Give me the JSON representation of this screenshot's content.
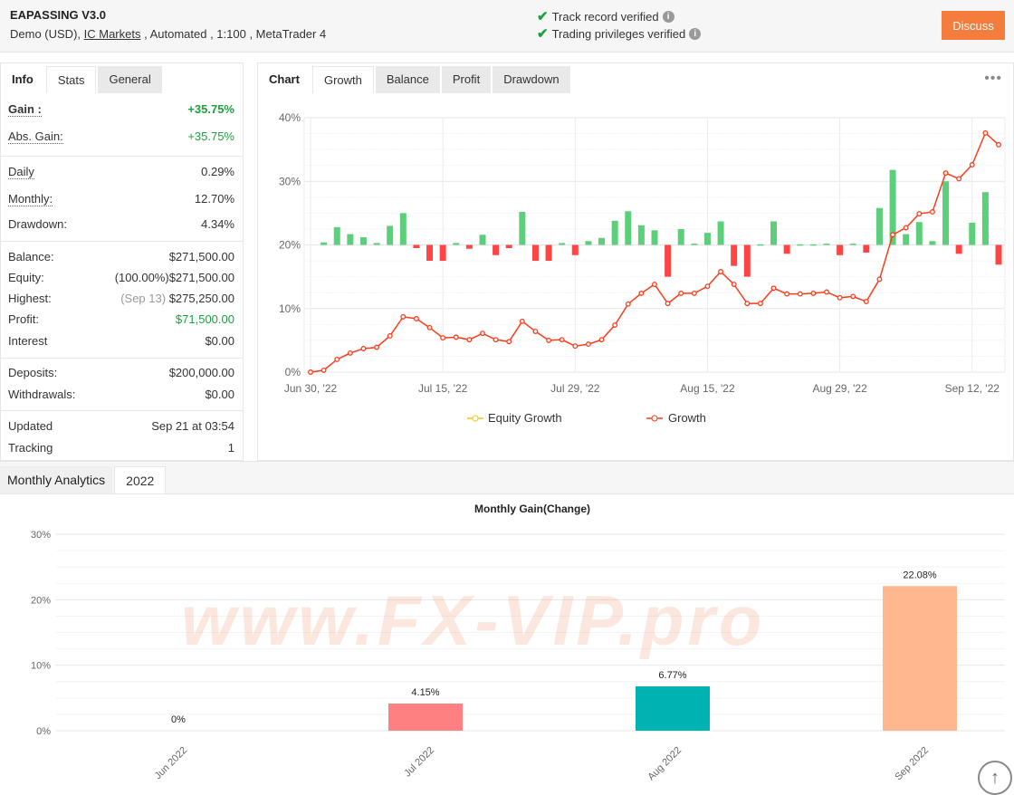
{
  "header": {
    "title": "EAPASSING V3.0",
    "sub_prefix": "Demo (USD), ",
    "broker": "IC Markets",
    "sub_suffix": " , Automated , 1:100 , MetaTrader 4",
    "verified": [
      "Track record verified",
      "Trading privileges verified"
    ],
    "discuss": "Discuss"
  },
  "left_tabs": [
    "Info",
    "Stats",
    "General"
  ],
  "stats": {
    "gain": {
      "k": "Gain :",
      "v": "+35.75%"
    },
    "abs_gain": {
      "k": "Abs. Gain:",
      "v": "+35.75%"
    },
    "daily": {
      "k": "Daily",
      "v": "0.29%"
    },
    "monthly": {
      "k": "Monthly:",
      "v": "12.70%"
    },
    "drawdown": {
      "k": "Drawdown:",
      "v": "4.34%"
    },
    "balance": {
      "k": "Balance:",
      "v": "$271,500.00"
    },
    "equity": {
      "k": "Equity:",
      "pre": "(100.00%)",
      "v": "$271,500.00"
    },
    "highest": {
      "k": "Highest:",
      "pre": "(Sep 13)",
      "v": "$275,250.00"
    },
    "profit": {
      "k": "Profit:",
      "v": "$71,500.00"
    },
    "interest": {
      "k": "Interest",
      "v": "$0.00"
    },
    "deposits": {
      "k": "Deposits:",
      "v": "$200,000.00"
    },
    "withdrawals": {
      "k": "Withdrawals:",
      "v": "$0.00"
    },
    "updated": {
      "k": "Updated",
      "v": "Sep 21 at 03:54"
    },
    "tracking": {
      "k": "Tracking",
      "v": "1"
    }
  },
  "chart_tabs": [
    "Chart",
    "Growth",
    "Balance",
    "Profit",
    "Drawdown"
  ],
  "watermark": "www.FX-VIP.pro",
  "chart_data": [
    {
      "type": "line",
      "y_ticks": [
        "0%",
        "10%",
        "20%",
        "30%",
        "40%"
      ],
      "ylim": [
        0,
        40
      ],
      "x_ticks": [
        {
          "index": 0,
          "label": "Jun 30, '22"
        },
        {
          "index": 10,
          "label": "Jul 15, '22"
        },
        {
          "index": 20,
          "label": "Jul 29, '22"
        },
        {
          "index": 30,
          "label": "Aug 15, '22"
        },
        {
          "index": 40,
          "label": "Aug 29, '22"
        },
        {
          "index": 50,
          "label": "Sep 12, '22"
        }
      ],
      "legend": [
        "Equity Growth",
        "Growth"
      ],
      "legend_position": "bottom",
      "colors": {
        "growth": "#ff3b1a",
        "equity": "#f2c81a",
        "bar_pos": "#5ccf7a",
        "bar_neg": "#ff4444"
      },
      "growth": [
        0,
        0.3,
        2.0,
        3.0,
        3.7,
        3.9,
        5.7,
        8.7,
        8.4,
        7.0,
        5.4,
        5.5,
        5.1,
        6.1,
        5.1,
        4.8,
        8.0,
        6.4,
        5.0,
        5.1,
        4.1,
        4.4,
        5.1,
        7.4,
        10.7,
        12.4,
        13.8,
        10.8,
        12.4,
        12.4,
        13.5,
        15.8,
        13.8,
        10.8,
        10.8,
        13.2,
        12.3,
        12.3,
        12.4,
        12.6,
        11.7,
        11.9,
        11.1,
        14.6,
        21.6,
        22.7,
        24.9,
        25.2,
        31.3,
        30.4,
        32.6,
        37.6,
        35.75
      ],
      "bar_baseline": 20,
      "daily_bars": [
        null,
        0.4,
        2.8,
        1.7,
        1.2,
        0.3,
        3.0,
        5.0,
        -0.5,
        -2.5,
        -2.5,
        0.3,
        -0.6,
        1.6,
        -1.6,
        -0.5,
        5.2,
        -2.5,
        -2.5,
        0.3,
        -1.6,
        0.6,
        1.1,
        3.8,
        5.3,
        3.1,
        2.3,
        -5.0,
        2.5,
        0.2,
        1.9,
        3.7,
        -3.3,
        -5.0,
        0.1,
        3.7,
        -1.4,
        0.1,
        0.1,
        0.2,
        -1.6,
        0.2,
        -1.2,
        5.8,
        11.8,
        1.7,
        3.6,
        0.6,
        10.0,
        -1.4,
        3.5,
        8.3,
        -3.1
      ]
    },
    {
      "type": "bar",
      "title": "Monthly Gain(Change)",
      "categories": [
        "Jun 2022",
        "Jul 2022",
        "Aug 2022",
        "Sep 2022"
      ],
      "values": [
        0,
        4.15,
        6.77,
        22.08
      ],
      "labels": [
        "0%",
        "4.15%",
        "6.77%",
        "22.08%"
      ],
      "colors": [
        "#ff8080",
        "#ff8080",
        "#00b3b3",
        "#ffb78f"
      ],
      "y_ticks": [
        "0%",
        "10%",
        "20%",
        "30%"
      ],
      "ylim": [
        0,
        30
      ]
    }
  ],
  "monthly_tabs": [
    "Monthly Analytics",
    "2022"
  ]
}
